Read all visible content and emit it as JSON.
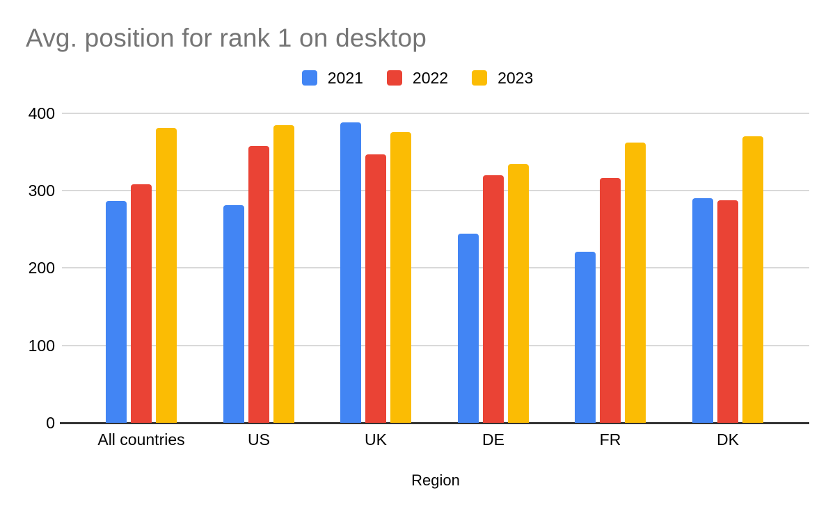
{
  "chart_data": {
    "type": "bar",
    "title": "Avg. position for rank 1 on desktop",
    "xlabel": "Region",
    "ylabel": "",
    "categories": [
      "All countries",
      "US",
      "UK",
      "DE",
      "FR",
      "DK"
    ],
    "series": [
      {
        "name": "2021",
        "color": "#4285F4",
        "values": [
          286,
          281,
          388,
          244,
          221,
          290
        ]
      },
      {
        "name": "2022",
        "color": "#EA4335",
        "values": [
          308,
          357,
          347,
          320,
          316,
          287
        ]
      },
      {
        "name": "2023",
        "color": "#FBBC04",
        "values": [
          381,
          384,
          375,
          334,
          362,
          370
        ]
      }
    ],
    "ylim": [
      0,
      400
    ],
    "y_ticks": [
      0,
      100,
      200,
      300,
      400
    ],
    "grid": true,
    "legend_position": "top",
    "colors": {
      "title_text": "#757575",
      "axis_text": "#000000",
      "gridline": "#d9d9d9",
      "axis_line": "#333333",
      "background": "#ffffff"
    }
  }
}
